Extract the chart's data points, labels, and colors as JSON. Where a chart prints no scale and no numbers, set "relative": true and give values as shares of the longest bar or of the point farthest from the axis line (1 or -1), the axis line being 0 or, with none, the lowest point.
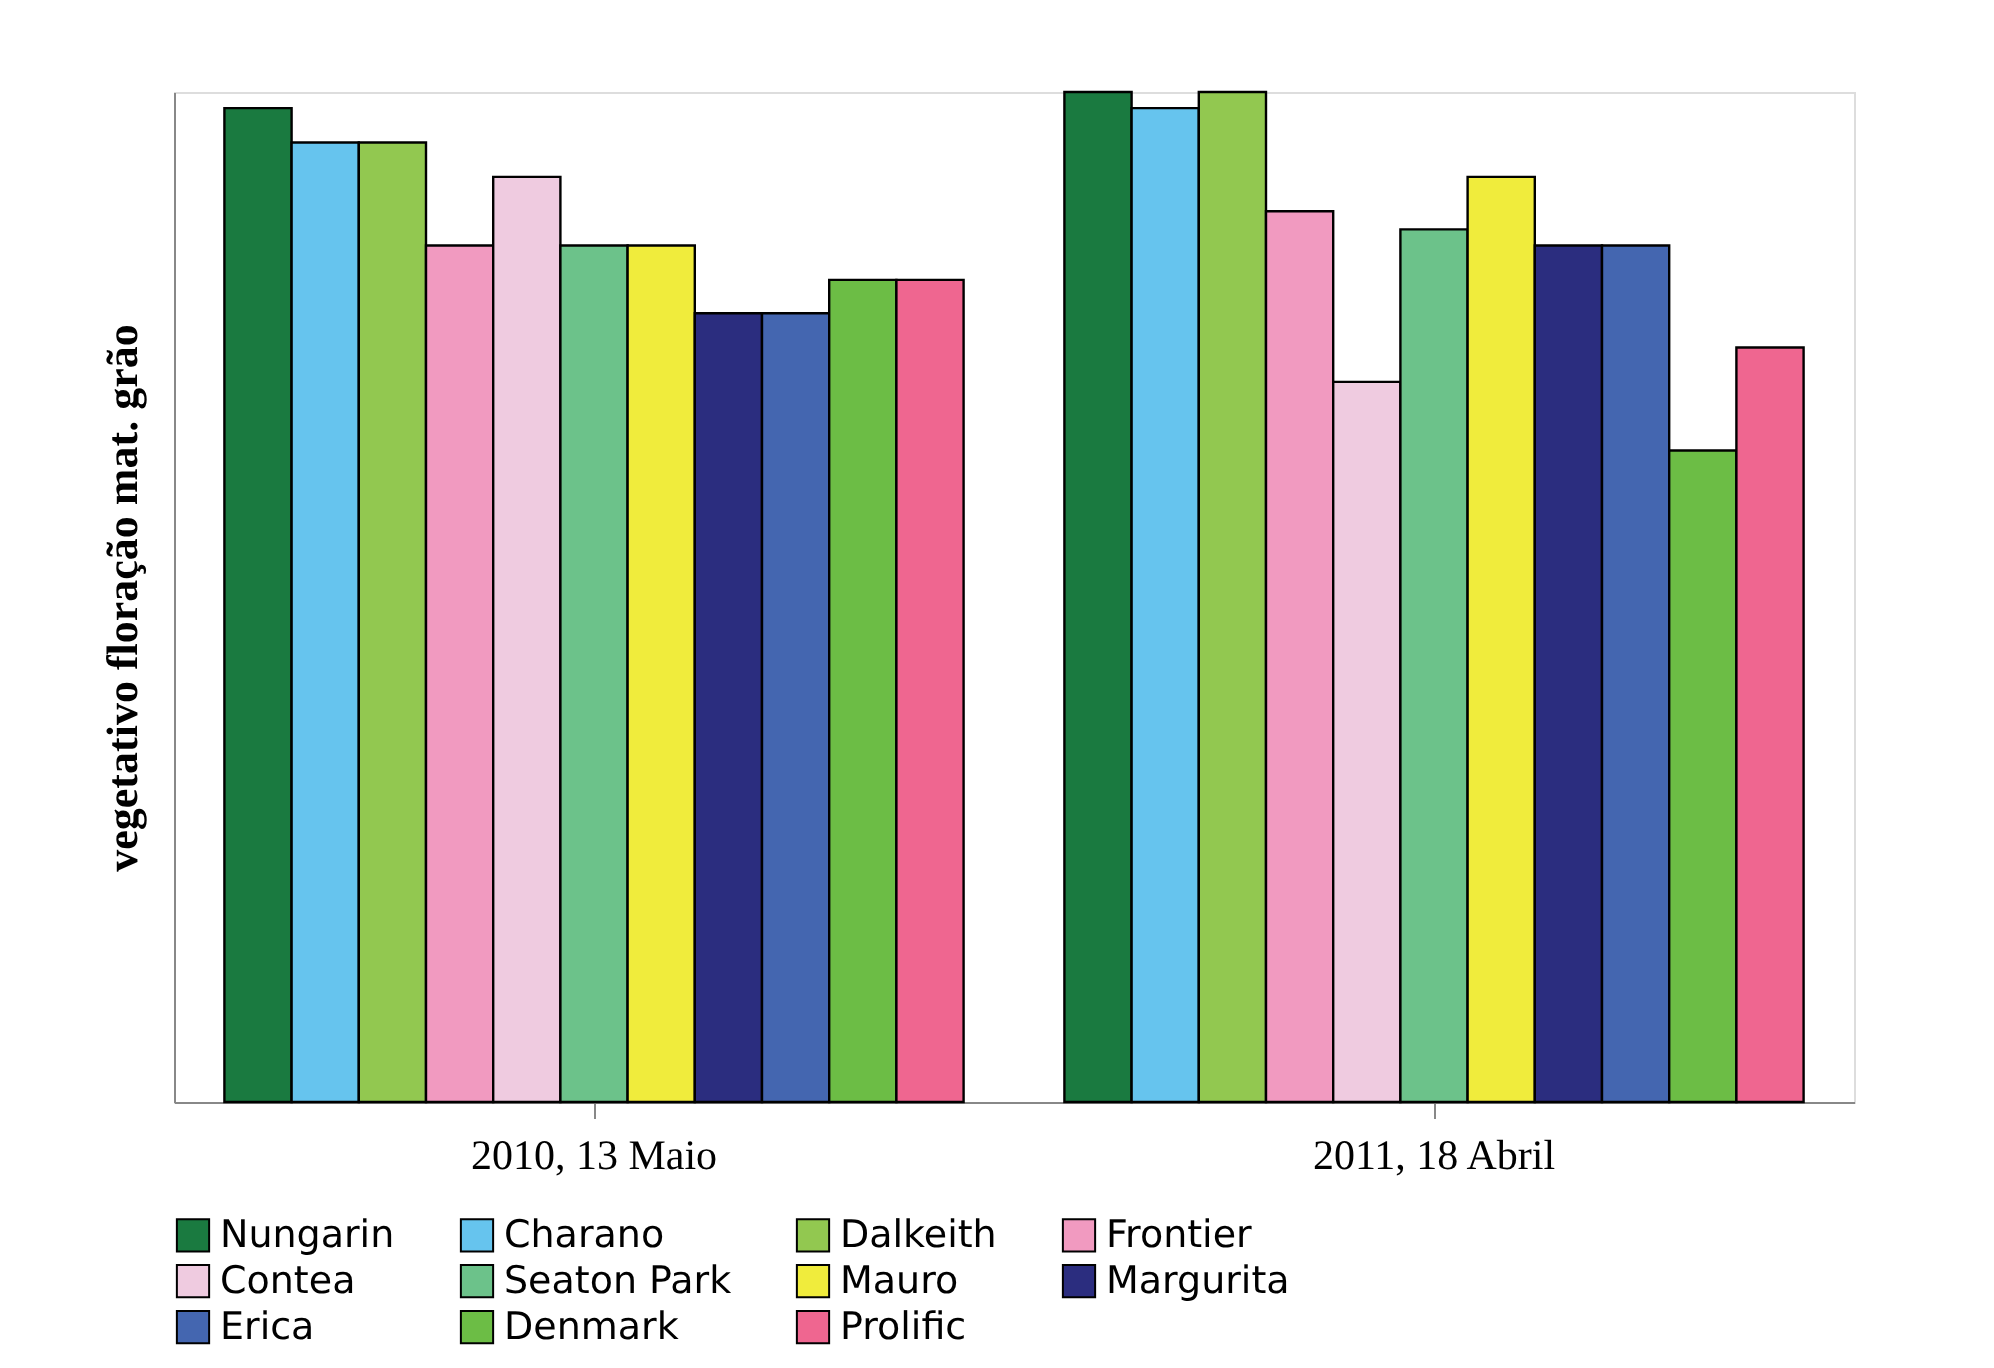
{
  "chart_data": {
    "type": "bar",
    "relative": true,
    "ylabel": "vegetativo  floração  mat. grão",
    "categories": [
      "2010, 13 Maio",
      "2011, 18 Abril"
    ],
    "grid": false,
    "legend": "bottom",
    "series": [
      {
        "name": "Nungarin",
        "color": "#1a7a40",
        "values": [
          0.984,
          1.0
        ]
      },
      {
        "name": "Charano",
        "color": "#66c4ee",
        "values": [
          0.95,
          0.984
        ]
      },
      {
        "name": "Dalkeith",
        "color": "#92c850",
        "values": [
          0.95,
          1.0
        ]
      },
      {
        "name": "Frontier",
        "color": "#f19ac0",
        "values": [
          0.848,
          0.882
        ]
      },
      {
        "name": "Contea",
        "color": "#efcbe0",
        "values": [
          0.916,
          0.713
        ]
      },
      {
        "name": "Seaton Park",
        "color": "#6cc28a",
        "values": [
          0.848,
          0.864
        ]
      },
      {
        "name": "Mauro",
        "color": "#f0ec3c",
        "values": [
          0.848,
          0.916
        ]
      },
      {
        "name": "Margurita",
        "color": "#2b2d7f",
        "values": [
          0.781,
          0.848
        ]
      },
      {
        "name": "Erica",
        "color": "#4466b0",
        "values": [
          0.781,
          0.848
        ]
      },
      {
        "name": "Denmark",
        "color": "#6cbd45",
        "values": [
          0.814,
          0.645
        ]
      },
      {
        "name": "Prolific",
        "color": "#ef6690",
        "values": [
          0.814,
          0.747
        ]
      }
    ]
  }
}
